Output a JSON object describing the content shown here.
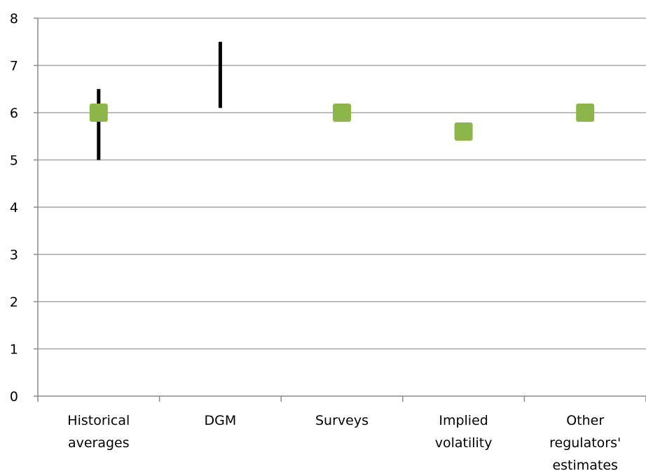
{
  "chart_data": {
    "type": "scatter",
    "title": "",
    "xlabel": "",
    "ylabel": "",
    "ylim": [
      0,
      8
    ],
    "y_ticks": [
      "0",
      "1",
      "2",
      "3",
      "4",
      "5",
      "6",
      "7",
      "8"
    ],
    "grid": true,
    "categories": [
      [
        "Historical",
        "averages"
      ],
      [
        "DGM"
      ],
      [
        "Surveys"
      ],
      [
        "Implied",
        "volatility"
      ],
      [
        "Other",
        "regulators'",
        "estimates"
      ]
    ],
    "ranges": [
      {
        "category_index": 0,
        "low": 5.0,
        "high": 6.5
      },
      {
        "category_index": 1,
        "low": 6.1,
        "high": 7.5
      }
    ],
    "points": [
      {
        "category_index": 0,
        "value": 6.0
      },
      {
        "category_index": 2,
        "value": 6.0
      },
      {
        "category_index": 3,
        "value": 5.6
      },
      {
        "category_index": 4,
        "value": 6.0
      }
    ],
    "colors": {
      "point": "#8db64a",
      "range": "#000000",
      "grid": "#a6a6a6"
    }
  }
}
